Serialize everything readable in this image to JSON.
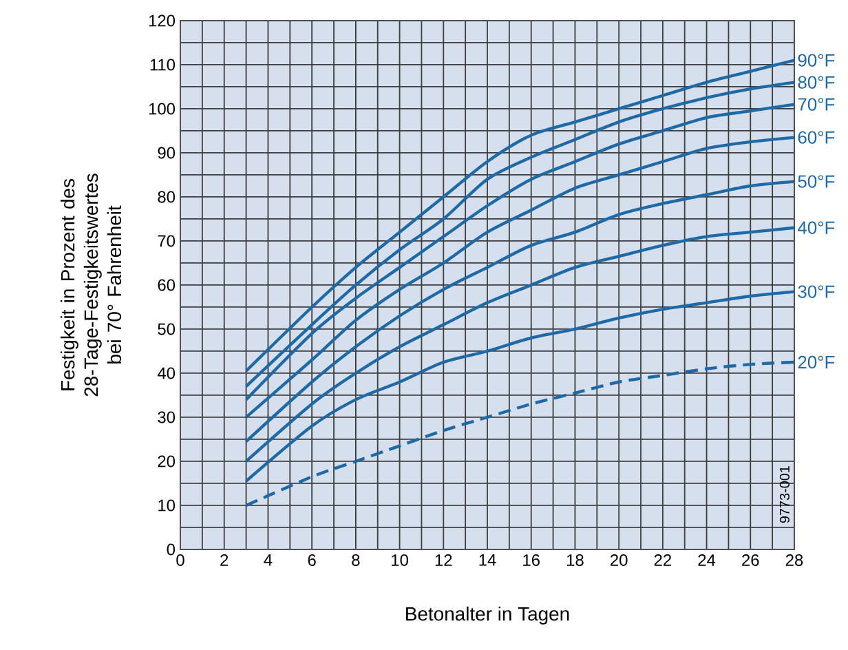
{
  "chart_data": {
    "type": "line",
    "xlabel": "Betonalter in Tagen",
    "ylabel": "Festigkeit in Prozent des 28-Tage-Festigkeitswertes bei 70° Fahrenheit",
    "x": [
      3,
      6,
      8,
      10,
      12,
      14,
      16,
      18,
      20,
      22,
      24,
      26,
      28
    ],
    "series": [
      {
        "name": "90°F",
        "color": "#1f6aa5",
        "values": [
          40.5,
          55,
          64,
          72,
          80,
          88,
          94,
          97,
          100,
          103,
          106,
          108.5,
          111
        ]
      },
      {
        "name": "80°F",
        "color": "#1f6aa5",
        "values": [
          37,
          51,
          60,
          68,
          75,
          84,
          89,
          93,
          97,
          100,
          102.5,
          104.5,
          106
        ]
      },
      {
        "name": "70°F",
        "color": "#1f6aa5",
        "values": [
          34,
          49,
          57,
          64,
          71,
          78,
          84,
          88,
          92,
          95,
          98,
          99.5,
          101
        ]
      },
      {
        "name": "60°F",
        "color": "#1f6aa5",
        "values": [
          30,
          43,
          52,
          59,
          65,
          72,
          77,
          82,
          85,
          88,
          91,
          92.5,
          93.5
        ]
      },
      {
        "name": "50°F",
        "color": "#1f6aa5",
        "values": [
          24.5,
          38,
          46,
          53,
          59,
          64,
          69,
          72,
          76,
          78.5,
          80.5,
          82.5,
          83.5
        ]
      },
      {
        "name": "40°F",
        "color": "#1f6aa5",
        "values": [
          20,
          33,
          40,
          46,
          51,
          56,
          60,
          64,
          66.5,
          69,
          71,
          72,
          73
        ]
      },
      {
        "name": "30°F",
        "color": "#1f6aa5",
        "values": [
          15.5,
          28,
          34,
          38,
          42.5,
          45,
          48,
          50,
          52.5,
          54.5,
          56,
          57.5,
          58.5
        ]
      },
      {
        "name": "20°F",
        "color": "#1f6aa5",
        "line_style": "dashed",
        "values": [
          10,
          16.5,
          20,
          23.5,
          27,
          30,
          33,
          35.5,
          38,
          39.5,
          41,
          42,
          42.5
        ]
      }
    ],
    "xlim": [
      0,
      28
    ],
    "ylim": [
      0,
      120
    ],
    "xticks": [
      0,
      2,
      4,
      6,
      8,
      10,
      12,
      14,
      16,
      18,
      20,
      22,
      24,
      26,
      28
    ],
    "yticks": [
      0,
      10,
      20,
      30,
      40,
      50,
      60,
      70,
      80,
      90,
      100,
      110,
      120
    ],
    "grid": true,
    "marker": "none",
    "line_style": "solid",
    "annotations": [
      "9773-001"
    ]
  }
}
